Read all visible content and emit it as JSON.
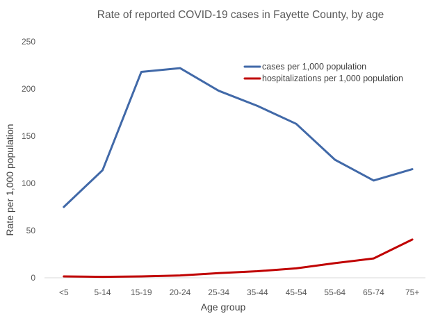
{
  "chart_data": {
    "type": "line",
    "title": "Rate of reported COVID-19 cases in Fayette County, by age",
    "xlabel": "Age group",
    "ylabel": "Rate per 1,000 population",
    "categories": [
      "<5",
      "5-14",
      "15-19",
      "20-24",
      "25-34",
      "35-44",
      "45-54",
      "55-64",
      "65-74",
      "75+"
    ],
    "ylim": [
      0,
      250
    ],
    "yticks": [
      0,
      50,
      100,
      150,
      200,
      250
    ],
    "grid": false,
    "legend_position": "top-right",
    "series": [
      {
        "name": "cases per 1,000 population",
        "color": "#4169a8",
        "values": [
          75,
          114,
          218,
          222,
          198,
          182,
          163,
          125,
          103,
          115
        ]
      },
      {
        "name": "hospitalizations per 1,000 population",
        "color": "#c00000",
        "values": [
          1.5,
          1,
          1.5,
          2.5,
          5,
          7,
          10,
          15.5,
          20.5,
          40.5
        ]
      }
    ]
  }
}
